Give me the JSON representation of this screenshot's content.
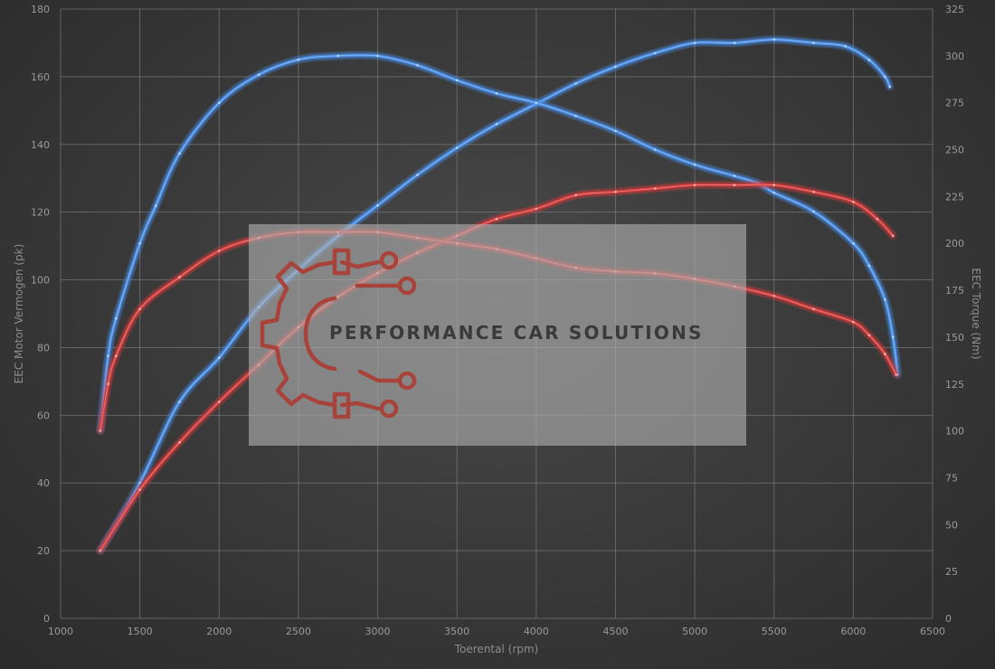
{
  "chart_data": {
    "type": "line",
    "xlabel": "Toerental (rpm)",
    "ylabel_left": "EEC Motor Vermogen (pk)",
    "ylabel_right": "EEC Torque (Nm)",
    "xlim": [
      1000,
      6500
    ],
    "ylim_left": [
      0,
      180
    ],
    "ylim_right": [
      0,
      325
    ],
    "x_ticks": [
      1000,
      1500,
      2000,
      2500,
      3000,
      3500,
      4000,
      4500,
      5000,
      5500,
      6000,
      6500
    ],
    "y_left_ticks": [
      0,
      20,
      40,
      60,
      80,
      100,
      120,
      140,
      160,
      180
    ],
    "y_right_ticks": [
      0,
      25,
      50,
      75,
      100,
      125,
      150,
      175,
      200,
      225,
      250,
      275,
      300,
      325
    ],
    "grid": true,
    "series": [
      {
        "axis": "left",
        "color": "#4a8fe8",
        "points": [
          [
            1250,
            20
          ],
          [
            1500,
            40
          ],
          [
            1750,
            64
          ],
          [
            2000,
            77
          ],
          [
            2250,
            92
          ],
          [
            2500,
            103
          ],
          [
            2750,
            113
          ],
          [
            3000,
            122
          ],
          [
            3250,
            131
          ],
          [
            3500,
            139
          ],
          [
            3750,
            146
          ],
          [
            4000,
            152
          ],
          [
            4250,
            158
          ],
          [
            4500,
            163
          ],
          [
            4750,
            167
          ],
          [
            5000,
            170
          ],
          [
            5250,
            170
          ],
          [
            5500,
            171
          ],
          [
            5750,
            170
          ],
          [
            5950,
            169
          ],
          [
            6100,
            165
          ],
          [
            6200,
            160
          ],
          [
            6230,
            157
          ]
        ]
      },
      {
        "axis": "right",
        "color": "#4a8fe8",
        "points": [
          [
            1250,
            100
          ],
          [
            1300,
            140
          ],
          [
            1350,
            160
          ],
          [
            1500,
            200
          ],
          [
            1600,
            220
          ],
          [
            1750,
            248
          ],
          [
            2000,
            275
          ],
          [
            2250,
            290
          ],
          [
            2500,
            298
          ],
          [
            2750,
            300
          ],
          [
            3000,
            300
          ],
          [
            3250,
            295
          ],
          [
            3500,
            287
          ],
          [
            3750,
            280
          ],
          [
            4000,
            275
          ],
          [
            4250,
            268
          ],
          [
            4500,
            260
          ],
          [
            4750,
            250
          ],
          [
            5000,
            242
          ],
          [
            5250,
            236
          ],
          [
            5400,
            232
          ],
          [
            5500,
            227
          ],
          [
            5750,
            217
          ],
          [
            6000,
            200
          ],
          [
            6100,
            188
          ],
          [
            6200,
            170
          ],
          [
            6250,
            150
          ],
          [
            6280,
            130
          ]
        ]
      },
      {
        "axis": "left",
        "color": "#d63a3a",
        "points": [
          [
            1250,
            20
          ],
          [
            1500,
            38
          ],
          [
            1750,
            52
          ],
          [
            2000,
            64
          ],
          [
            2250,
            75
          ],
          [
            2500,
            86
          ],
          [
            2750,
            95
          ],
          [
            3000,
            102
          ],
          [
            3250,
            108
          ],
          [
            3500,
            113
          ],
          [
            3750,
            118
          ],
          [
            4000,
            121
          ],
          [
            4250,
            125
          ],
          [
            4500,
            126
          ],
          [
            4750,
            127
          ],
          [
            5000,
            128
          ],
          [
            5250,
            128
          ],
          [
            5500,
            128
          ],
          [
            5750,
            126
          ],
          [
            6000,
            123
          ],
          [
            6150,
            118
          ],
          [
            6250,
            113
          ]
        ]
      },
      {
        "axis": "right",
        "color": "#d63a3a",
        "points": [
          [
            1250,
            100
          ],
          [
            1300,
            125
          ],
          [
            1350,
            140
          ],
          [
            1500,
            165
          ],
          [
            1750,
            182
          ],
          [
            2000,
            196
          ],
          [
            2250,
            203
          ],
          [
            2500,
            206
          ],
          [
            2750,
            206
          ],
          [
            3000,
            206
          ],
          [
            3250,
            203
          ],
          [
            3500,
            200
          ],
          [
            3750,
            197
          ],
          [
            4000,
            192
          ],
          [
            4250,
            187
          ],
          [
            4500,
            185
          ],
          [
            4750,
            184
          ],
          [
            5000,
            181
          ],
          [
            5250,
            177
          ],
          [
            5500,
            172
          ],
          [
            5750,
            165
          ],
          [
            6000,
            158
          ],
          [
            6100,
            151
          ],
          [
            6200,
            141
          ],
          [
            6270,
            130
          ]
        ]
      }
    ]
  },
  "watermark": {
    "text": "PERFORMANCE CAR SOLUTIONS",
    "logo": "gear-circuit-logo",
    "logo_color": "#a8433b",
    "text_color": "#3a3a3a"
  }
}
